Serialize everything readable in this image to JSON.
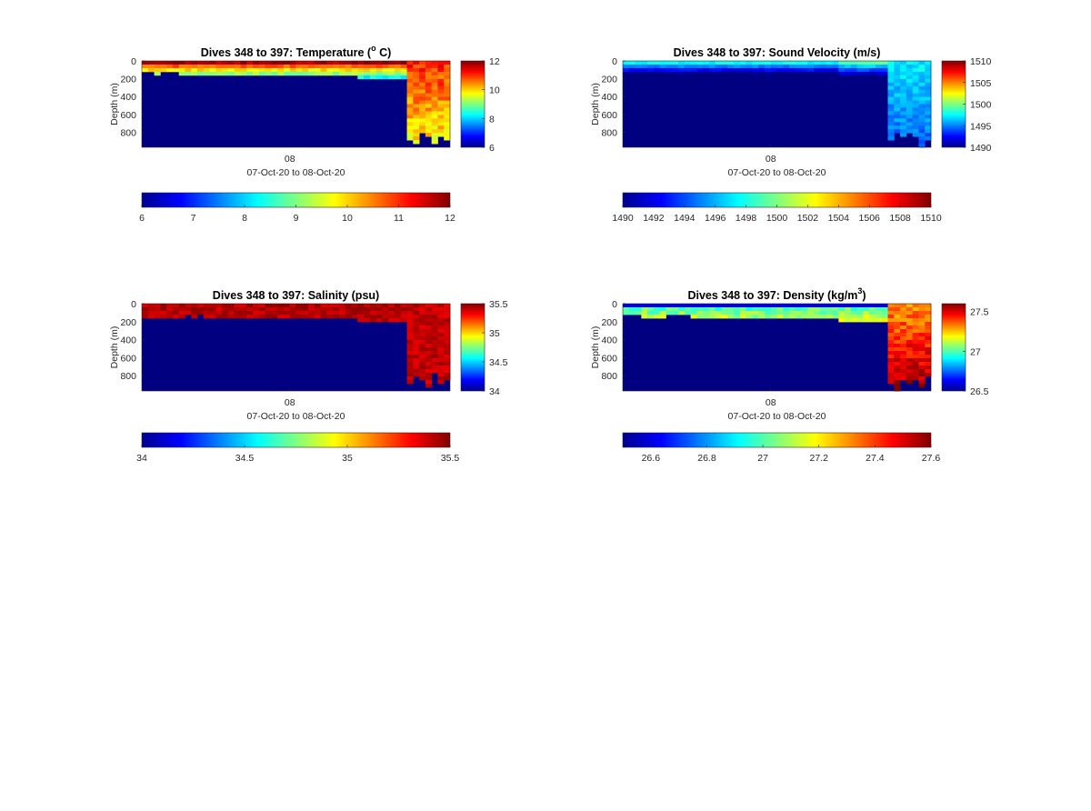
{
  "chart_data": [
    {
      "type": "heatmap",
      "variable": "temperature",
      "title": "Dives 348 to 397: Temperature (",
      "title_sup": "o",
      "title_tail": " C)",
      "ylabel": "Depth (m)",
      "xlabel": "07-Oct-20 to 08-Oct-20",
      "x_tick_labels": [
        "08"
      ],
      "y_tick_labels": [
        "0",
        "200",
        "400",
        "600",
        "800"
      ],
      "ylim": [
        0,
        970
      ],
      "colormap": "jet",
      "clim": [
        6,
        12
      ],
      "side_colorbar_ticks": [
        "12",
        "10",
        "8",
        "6"
      ],
      "bottom_colorbar_ticks": [
        "6",
        "7",
        "8",
        "9",
        "10",
        "11",
        "12"
      ],
      "background_value": 6,
      "surface_value": 11.5,
      "deep_value": 9.8,
      "transition_fraction": 0.86
    },
    {
      "type": "heatmap",
      "variable": "sound_velocity",
      "title": "Dives 348 to 397: Sound Velocity (m/s)",
      "ylabel": "Depth (m)",
      "xlabel": "07-Oct-20 to 08-Oct-20",
      "x_tick_labels": [
        "08"
      ],
      "y_tick_labels": [
        "0",
        "200",
        "400",
        "600",
        "800"
      ],
      "ylim": [
        0,
        970
      ],
      "colormap": "jet",
      "clim": [
        1490,
        1510
      ],
      "side_colorbar_ticks": [
        "1510",
        "1505",
        "1500",
        "1495",
        "1490"
      ],
      "bottom_colorbar_ticks": [
        "1490",
        "1492",
        "1494",
        "1496",
        "1498",
        "1500",
        "1502",
        "1504",
        "1506",
        "1508",
        "1510"
      ],
      "background_value": 1490,
      "surface_value": 1497.5,
      "deep_value": 1494.5,
      "transition_fraction": 0.86
    },
    {
      "type": "heatmap",
      "variable": "salinity",
      "title": "Dives 348 to 397: Salinity (psu)",
      "ylabel": "Depth (m)",
      "xlabel": "07-Oct-20 to 08-Oct-20",
      "x_tick_labels": [
        "08"
      ],
      "y_tick_labels": [
        "0",
        "200",
        "400",
        "600",
        "800"
      ],
      "ylim": [
        0,
        970
      ],
      "colormap": "jet",
      "clim": [
        34,
        35.5
      ],
      "side_colorbar_ticks": [
        "35.5",
        "35",
        "34.5",
        "34"
      ],
      "bottom_colorbar_ticks": [
        "34",
        "34.5",
        "35",
        "35.5"
      ],
      "background_value": 34,
      "surface_value": 35.42,
      "deep_value": 35.4,
      "transition_fraction": 0.86
    },
    {
      "type": "heatmap",
      "variable": "density",
      "title": "Dives 348 to 397: Density (kg/m",
      "title_sup": "3",
      "title_tail": ")",
      "ylabel": "Depth (m)",
      "xlabel": "07-Oct-20 to 08-Oct-20",
      "x_tick_labels": [
        "08"
      ],
      "y_tick_labels": [
        "0",
        "200",
        "400",
        "600",
        "800"
      ],
      "ylim": [
        0,
        970
      ],
      "colormap": "jet",
      "clim": [
        26.5,
        27.6
      ],
      "side_colorbar_ticks": [
        "27.5",
        "27",
        "26.5"
      ],
      "bottom_colorbar_ticks": [
        "26.6",
        "26.8",
        "27",
        "27.2",
        "27.4",
        "27.6"
      ],
      "background_value": 26.5,
      "surface_value": 26.95,
      "deep_value": 27.3,
      "transition_fraction": 0.86
    }
  ]
}
